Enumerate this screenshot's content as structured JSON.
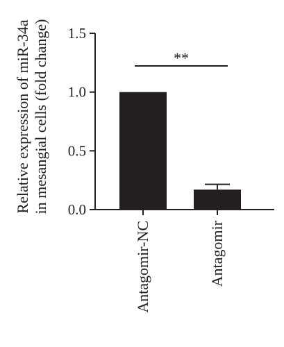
{
  "chart_data": {
    "type": "bar",
    "categories": [
      "Antagomir-NC",
      "Antagomir"
    ],
    "values": [
      1.0,
      0.17
    ],
    "errors": [
      0.0,
      0.045
    ],
    "ylabel_lines": [
      "Relative expression of miR-34a",
      "in mesangial cells (fold change)"
    ],
    "ylim": [
      0,
      1.5
    ],
    "yticks": [
      0.0,
      0.5,
      1.0,
      1.5
    ],
    "ytick_labels": [
      "0.0",
      "0.5",
      "1.0",
      "1.5"
    ],
    "significance": "**",
    "grid": false,
    "bar_color": "#231f20"
  }
}
